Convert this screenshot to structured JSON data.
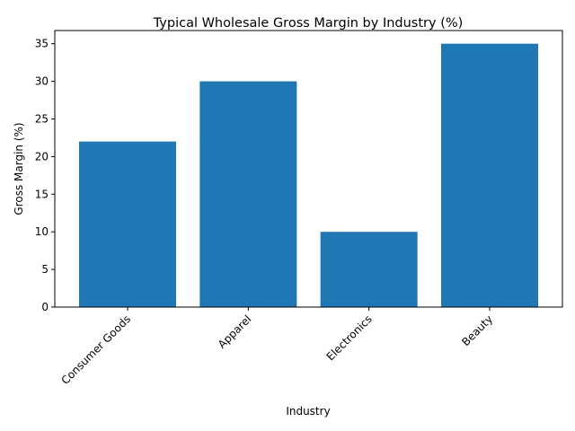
{
  "chart_data": {
    "type": "bar",
    "title": "Typical Wholesale Gross Margin by Industry (%)",
    "xlabel": "Industry",
    "ylabel": "Gross Margin (%)",
    "categories": [
      "Consumer Goods",
      "Apparel",
      "Electronics",
      "Beauty"
    ],
    "values": [
      22,
      30,
      10,
      35
    ],
    "ylim": [
      0,
      36.75
    ],
    "yticks": [
      0,
      5,
      10,
      15,
      20,
      25,
      30,
      35
    ],
    "bar_color": "#1f77b4",
    "grid": false,
    "legend": "none"
  }
}
